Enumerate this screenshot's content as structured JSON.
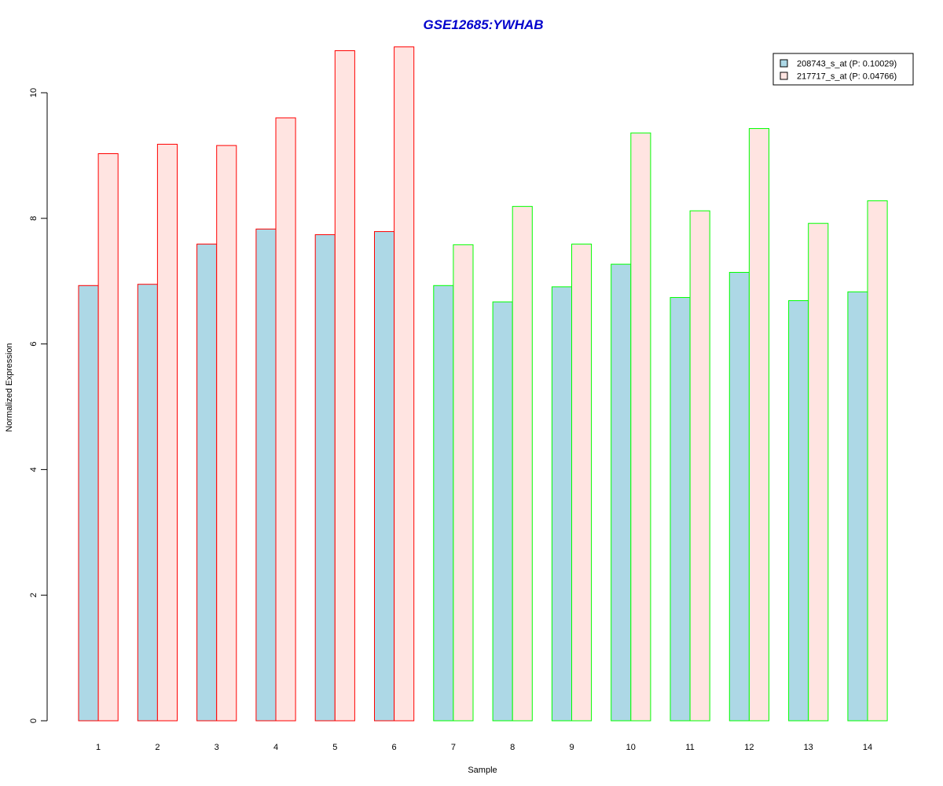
{
  "chart_data": {
    "type": "bar",
    "title": "GSE12685:YWHAB",
    "xlabel": "Sample",
    "ylabel": "Normalized Expression",
    "categories": [
      "1",
      "2",
      "3",
      "4",
      "5",
      "6",
      "7",
      "8",
      "9",
      "10",
      "11",
      "12",
      "13",
      "14"
    ],
    "y_ticks": [
      "0",
      "2",
      "4",
      "6",
      "8",
      "10"
    ],
    "ylim": [
      0,
      10.8
    ],
    "series": [
      {
        "name": "208743_s_at (P: 0.10029)",
        "fill": "#ADD8E6",
        "values": [
          6.93,
          6.95,
          7.59,
          7.83,
          7.74,
          7.79,
          6.93,
          6.67,
          6.91,
          7.27,
          6.74,
          7.14,
          6.69,
          6.83
        ]
      },
      {
        "name": "217717_s_at (P: 0.04766)",
        "fill": "#FFE4E1",
        "values": [
          9.03,
          9.18,
          9.16,
          9.6,
          10.67,
          10.73,
          7.58,
          8.19,
          7.59,
          9.36,
          8.12,
          9.43,
          7.92,
          8.28
        ]
      }
    ],
    "group_border_colors": [
      "#FF0000",
      "#FF0000",
      "#FF0000",
      "#FF0000",
      "#FF0000",
      "#FF0000",
      "#00FF00",
      "#00FF00",
      "#00FF00",
      "#00FF00",
      "#00FF00",
      "#00FF00",
      "#00FF00",
      "#00FF00"
    ],
    "title_color": "#0000CC",
    "legend_position": "top-right",
    "grid": false
  }
}
